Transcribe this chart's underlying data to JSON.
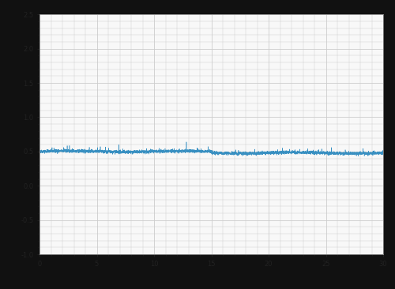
{
  "title": "",
  "xlabel": "",
  "ylabel": "",
  "line_color": "#2e8bbf",
  "line_width": 0.4,
  "background_color": "#111111",
  "plot_bg_color": "#f8f8f8",
  "grid_color": "#cccccc",
  "tick_color": "#222222",
  "n_points": 5000,
  "mean_value": 0.5,
  "noise_std": 0.012,
  "x_start": 0,
  "x_end": 30,
  "ylim": [
    -1.0,
    2.5
  ],
  "xlim": [
    0,
    30
  ],
  "x_ticks": [
    0,
    5,
    10,
    15,
    20,
    25,
    30
  ],
  "y_ticks": [
    -1.0,
    -0.5,
    0.0,
    0.5,
    1.0,
    1.5,
    2.0,
    2.5
  ],
  "x_tick_labels": [
    "0",
    "5",
    "10",
    "15",
    "20",
    "25",
    "30"
  ],
  "y_tick_labels": [
    "-1.0",
    "-0.5",
    "0.0",
    "0.5",
    "1.0",
    "1.5",
    "2.0",
    "2.5"
  ],
  "spine_color": "#888888",
  "seed": 42
}
